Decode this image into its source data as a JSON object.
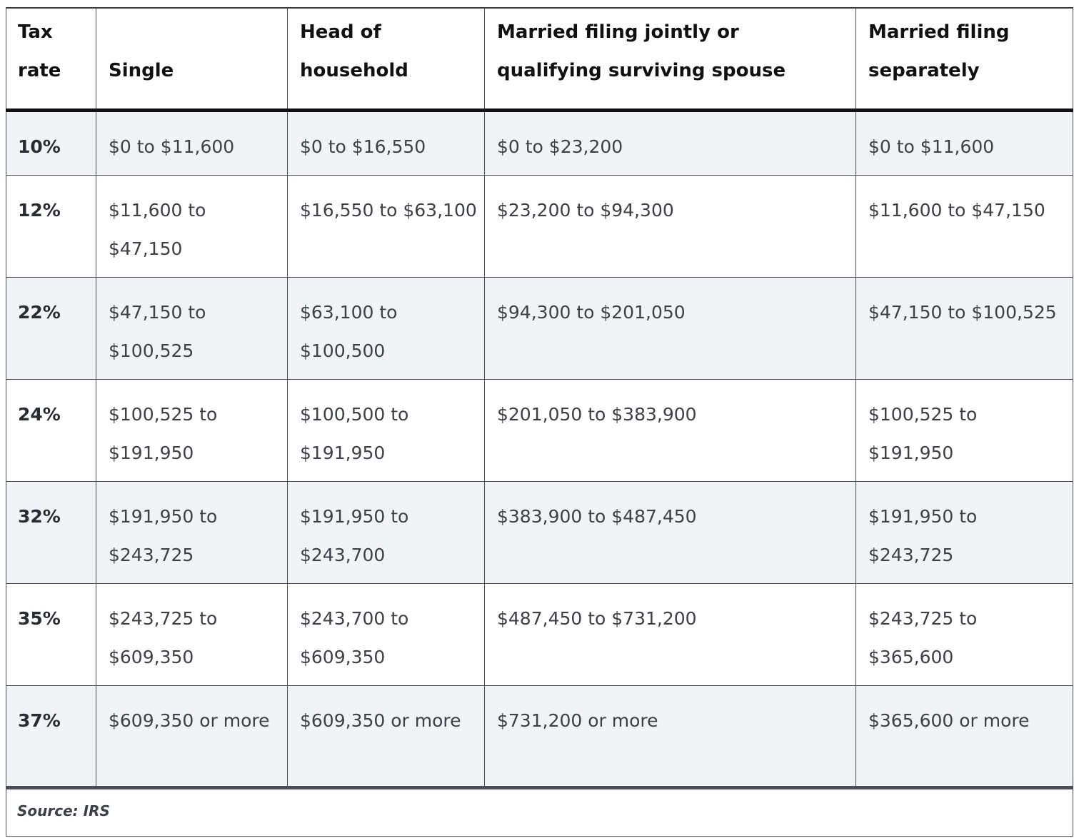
{
  "table": {
    "headers": [
      "Tax rate",
      "Single",
      "Head of household",
      "Married filing jointly or qualifying surviving spouse",
      "Married filing separately"
    ],
    "rows": [
      [
        "10%",
        "$0 to $11,600",
        "$0 to $16,550",
        "$0 to $23,200",
        "$0 to $11,600"
      ],
      [
        "12%",
        "$11,600 to $47,150",
        "$16,550 to $63,100",
        "$23,200 to $94,300",
        "$11,600 to $47,150"
      ],
      [
        "22%",
        "$47,150 to $100,525",
        "$63,100 to $100,500",
        "$94,300 to $201,050",
        "$47,150 to $100,525"
      ],
      [
        "24%",
        "$100,525 to $191,950",
        "$100,500 to $191,950",
        "$201,050 to $383,900",
        "$100,525 to $191,950"
      ],
      [
        "32%",
        "$191,950 to $243,725",
        "$191,950 to $243,700",
        "$383,900 to $487,450",
        "$191,950 to $243,725"
      ],
      [
        "35%",
        "$243,725 to $609,350",
        "$243,700 to $609,350",
        "$487,450 to $731,200",
        "$243,725 to $365,600"
      ],
      [
        "37%",
        "$609,350 or more",
        "$609,350 or more",
        "$731,200 or more",
        "$365,600 or more"
      ]
    ],
    "source": "Source: IRS"
  },
  "colors": {
    "shaded_row": "#f2f3f6",
    "border": "#4a4d55",
    "text": "#3e4048"
  }
}
